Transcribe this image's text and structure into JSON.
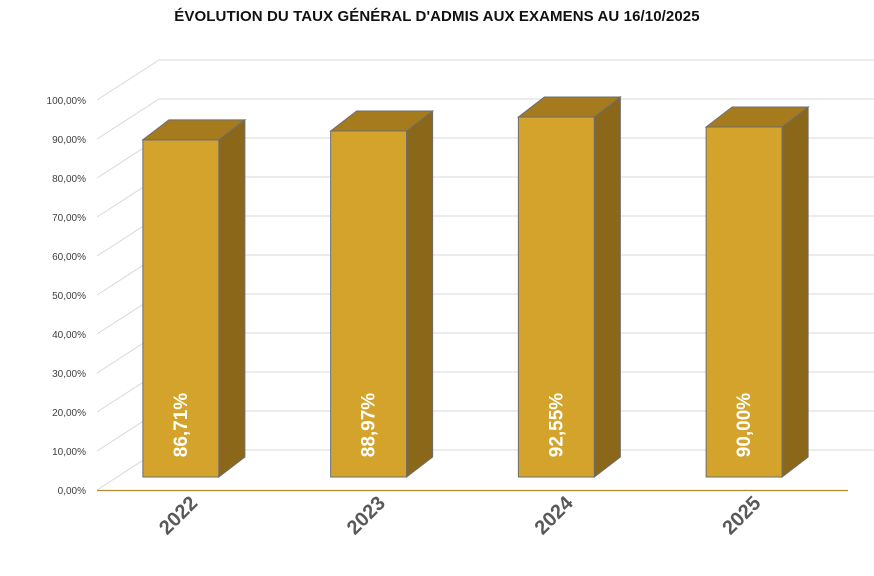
{
  "chart_data": {
    "type": "bar",
    "title": "ÉVOLUTION DU TAUX GÉNÉRAL D'ADMIS AUX EXAMENS AU 16/10/2025",
    "categories": [
      "2022",
      "2023",
      "2024",
      "2025"
    ],
    "series": [
      {
        "values": [
          86.71,
          88.97,
          92.55,
          90.0
        ]
      }
    ],
    "data_labels": [
      "86,71%",
      "88,97%",
      "92,55%",
      "90,00%"
    ],
    "y_ticks": [
      "0,00%",
      "10,00%",
      "20,00%",
      "30,00%",
      "40,00%",
      "50,00%",
      "60,00%",
      "70,00%",
      "80,00%",
      "90,00%",
      "100,00%"
    ],
    "ylim": [
      0,
      100
    ],
    "grid": true,
    "style": "3d-column",
    "colors": {
      "bar_front": "#D4A32B",
      "bar_side": "#8A6719",
      "bar_top": "#A67B1E",
      "grid": "#D9D9D9",
      "axis": "#B38A2E"
    }
  }
}
